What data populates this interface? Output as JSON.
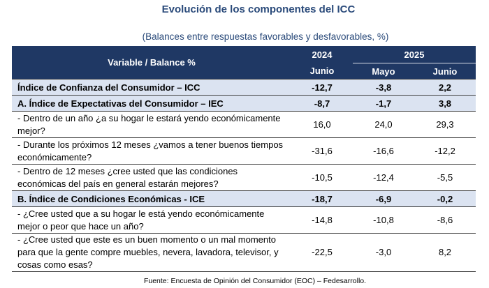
{
  "title": "Evolución de los componentes del ICC",
  "subtitle": "(Balances entre respuestas favorables y desfavorables, %)",
  "header": {
    "variable_label": "Variable / Balance %",
    "year_2024": "2024",
    "year_2025": "2025",
    "months": [
      "Junio",
      "Mayo",
      "Junio"
    ]
  },
  "rows": [
    {
      "label": "Índice de Confianza del Consumidor – ICC",
      "values": [
        "-12,7",
        "-3,8",
        "2,2"
      ]
    },
    {
      "label": "A. Índice de Expectativas del Consumidor – IEC",
      "values": [
        "-8,7",
        "-1,7",
        "3,8"
      ]
    },
    {
      "label": " - Dentro de un año ¿a su hogar le estará yendo económicamente mejor?",
      "values": [
        "16,0",
        "24,0",
        "29,3"
      ]
    },
    {
      "label": " - Durante los próximos 12 meses ¿vamos a tener buenos tiempos económicamente?",
      "values": [
        "-31,6",
        "-16,6",
        "-12,2"
      ]
    },
    {
      "label": " - Dentro de 12 meses ¿cree usted que las condiciones económicas del país en general estarán mejores?",
      "values": [
        "-10,5",
        "-12,4",
        "-5,5"
      ]
    },
    {
      "label": "B. Índice de Condiciones Económicas - ICE",
      "values": [
        "-18,7",
        "-6,9",
        "-0,2"
      ]
    },
    {
      "label": " - ¿Cree usted que a su hogar le está yendo económicamente mejor o peor que hace un año?",
      "values": [
        "-14,8",
        "-10,8",
        "-8,6"
      ]
    },
    {
      "label": " - ¿Cree usted que este es un buen momento o un mal momento para que la gente compre muebles, nevera, lavadora, televisor, y cosas como esas?",
      "values": [
        "-22,5",
        "-3,0",
        "8,2"
      ]
    }
  ],
  "source": "Fuente: Encuesta de Opinión del Consumidor (EOC) – Fedesarrollo."
}
